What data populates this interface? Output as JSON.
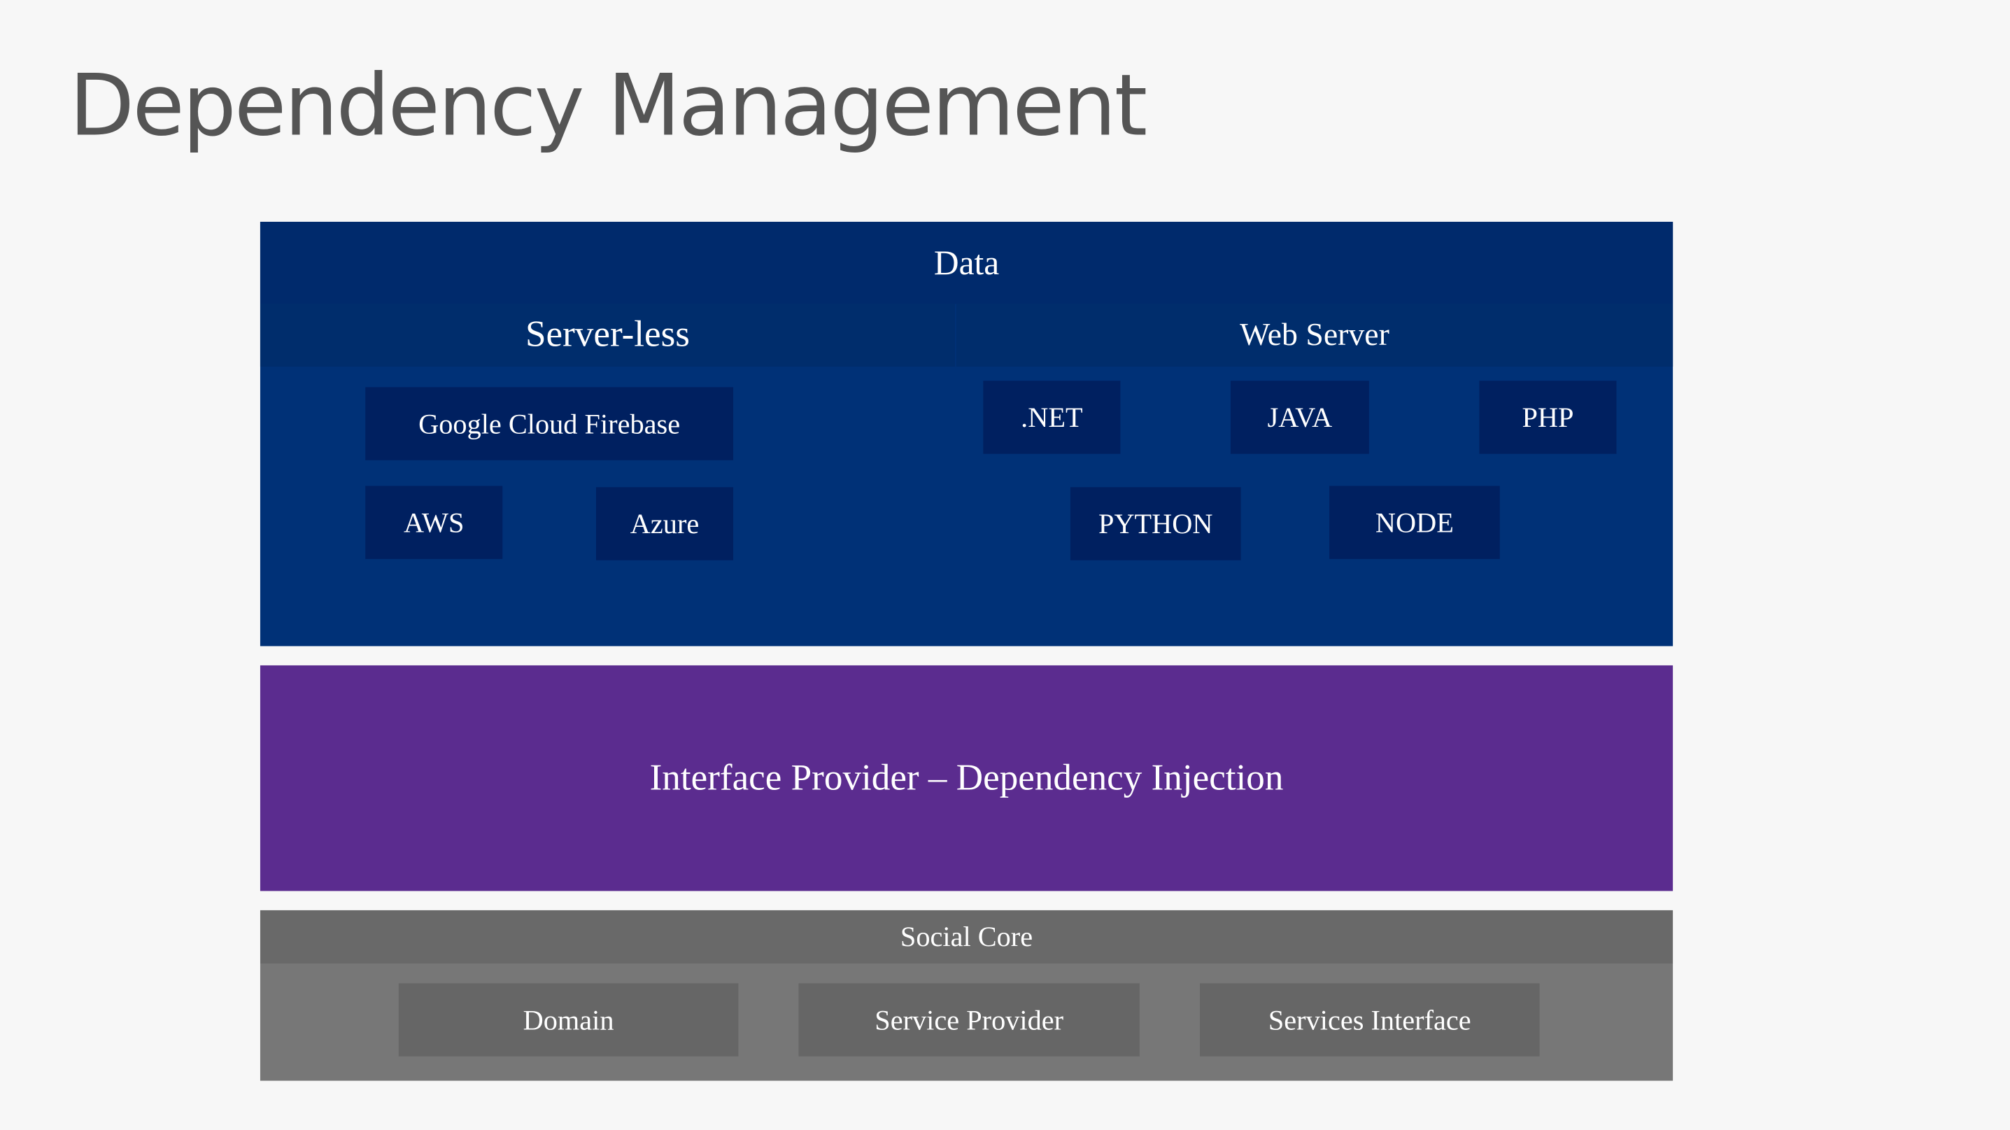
{
  "title": "Dependency Management",
  "data_layer": {
    "title": "Data",
    "groups": [
      {
        "title": "Server-less",
        "items": [
          "Google Cloud Firebase",
          "AWS",
          "Azure"
        ]
      },
      {
        "title": "Web Server",
        "items": [
          ".NET",
          "JAVA",
          "PHP",
          "PYTHON",
          "NODE"
        ]
      }
    ]
  },
  "interface_layer": {
    "title": "Interface Provider – Dependency Injection"
  },
  "core_layer": {
    "title": "Social Core",
    "items": [
      "Domain",
      "Service Provider",
      "Services Interface"
    ]
  }
}
